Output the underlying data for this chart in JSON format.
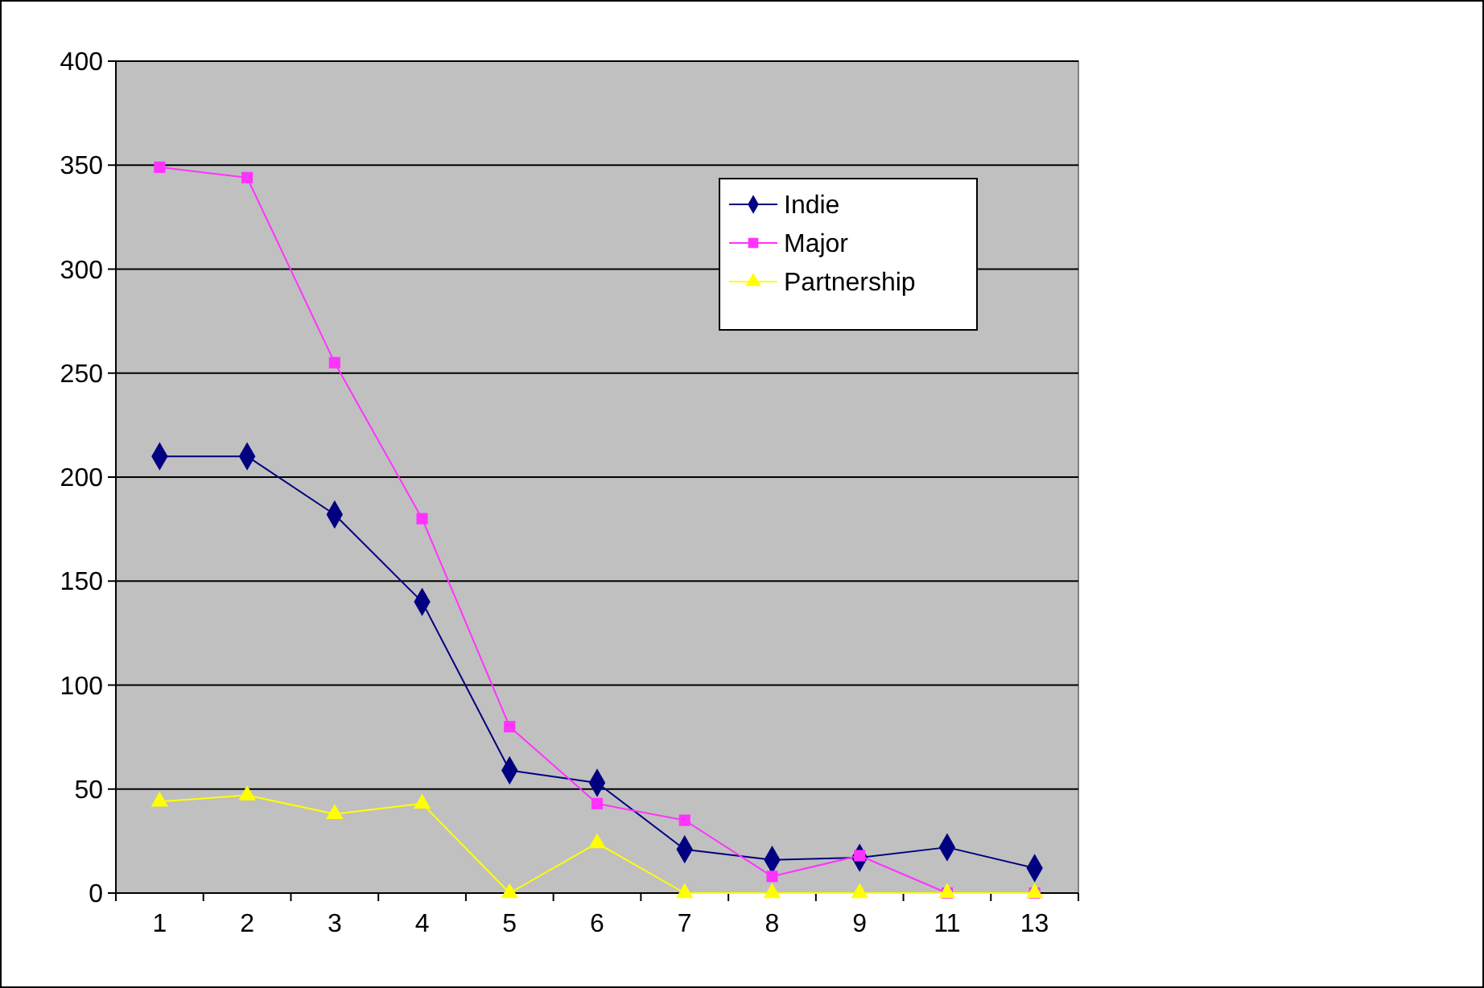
{
  "chart_data": {
    "type": "line",
    "categories": [
      "1",
      "2",
      "3",
      "4",
      "5",
      "6",
      "7",
      "8",
      "9",
      "11",
      "13"
    ],
    "series": [
      {
        "name": "Indie",
        "color": "#000080",
        "marker": "diamond",
        "values": [
          210,
          210,
          182,
          140,
          59,
          53,
          21,
          16,
          17,
          22,
          12
        ]
      },
      {
        "name": "Major",
        "color": "#ff33ff",
        "marker": "square",
        "values": [
          349,
          344,
          255,
          180,
          80,
          43,
          35,
          8,
          18,
          0,
          0
        ]
      },
      {
        "name": "Partnership",
        "color": "#ffff00",
        "marker": "triangle",
        "values": [
          44,
          47,
          38,
          43,
          0,
          24,
          0,
          0,
          0,
          0,
          0
        ]
      }
    ],
    "ylim": [
      0,
      400
    ],
    "yticks": [
      0,
      50,
      100,
      150,
      200,
      250,
      300,
      350,
      400
    ],
    "grid": "y",
    "legend": "top right"
  }
}
